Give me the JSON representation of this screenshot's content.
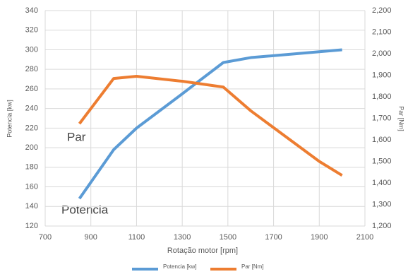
{
  "chart_data": {
    "type": "line",
    "x_label": "Rotação motor [rpm]",
    "y_label": "Potencia [kw]",
    "y2_label": "Par [Nm]",
    "x": [
      850,
      1000,
      1100,
      1300,
      1480,
      1600,
      1900,
      2000
    ],
    "series": [
      {
        "name": "Potencia [kw]",
        "color": "#5b9bd5",
        "values": [
          148,
          198,
          220,
          255,
          287,
          292,
          298,
          300
        ]
      },
      {
        "name": "Par [Nm]",
        "color": "#ed7d31",
        "axis": "y2",
        "values": [
          1675,
          1885,
          1895,
          1872,
          1845,
          1735,
          1500,
          1435
        ]
      }
    ],
    "annotations": [
      "Par",
      "Potencia"
    ],
    "xlim": [
      700,
      2100
    ],
    "xticks": [
      700,
      900,
      1100,
      1300,
      1500,
      1700,
      1900,
      2100
    ],
    "ylim": [
      120,
      340
    ],
    "yticks": [
      120,
      140,
      160,
      180,
      200,
      220,
      240,
      260,
      280,
      300,
      320,
      340
    ],
    "y2lim": [
      1200,
      2200
    ],
    "y2ticks": [
      {
        "value": 1200,
        "label": "1,200"
      },
      {
        "value": 1300,
        "label": "1,300"
      },
      {
        "value": 1400,
        "label": "1,400"
      },
      {
        "value": 1500,
        "label": "1,500"
      },
      {
        "value": 1600,
        "label": "1,600"
      },
      {
        "value": 1700,
        "label": "1,700"
      },
      {
        "value": 1800,
        "label": "1,800"
      },
      {
        "value": 1900,
        "label": "1,900"
      },
      {
        "value": 2000,
        "label": "2,000"
      },
      {
        "value": 2100,
        "label": "2,100"
      },
      {
        "value": 2200,
        "label": "2,200"
      }
    ],
    "grid": true,
    "legend": "bottom"
  }
}
